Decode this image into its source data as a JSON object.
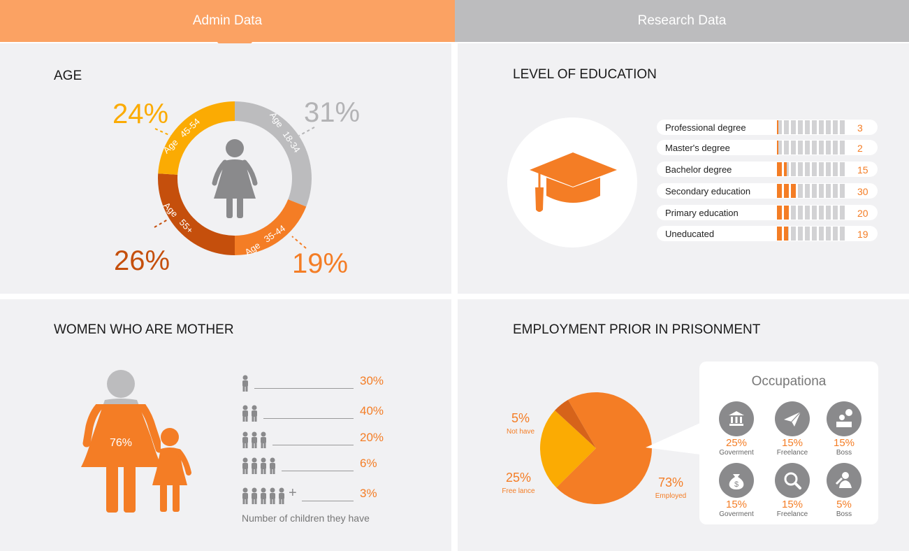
{
  "tabs": {
    "admin": "Admin Data",
    "research": "Research Data"
  },
  "colors": {
    "orange": "#f47d25",
    "light_orange": "#fba263",
    "amber": "#fbab03",
    "dark_orange": "#c54f0c",
    "gray": "#bcbcbe",
    "dark_gray": "#8a8a8c"
  },
  "age": {
    "title": "AGE",
    "chart_data": {
      "type": "pie",
      "style": "donut",
      "segments": [
        {
          "label_top": "Age",
          "label_range": "18-34",
          "value": 31,
          "display": "31%",
          "color": "#bcbcbe"
        },
        {
          "label_top": "Age",
          "label_range": "35-44",
          "value": 19,
          "display": "19%",
          "color": "#f47d25"
        },
        {
          "label_top": "Age",
          "label_range": "55+",
          "value": 26,
          "display": "26%",
          "color": "#c54f0c"
        },
        {
          "label_top": "Age",
          "label_range": "45-54",
          "value": 24,
          "display": "24%",
          "color": "#fbab03"
        }
      ]
    }
  },
  "education": {
    "title": "LEVEL OF EDUCATION",
    "icon": "graduation-cap-icon",
    "chart_data": {
      "type": "bar",
      "categories": [
        "Professional degree",
        "Master's degree",
        "Bachelor degree",
        "Secondary education",
        "Primary education",
        "Uneducated"
      ],
      "values": [
        3,
        2,
        15,
        30,
        20,
        19
      ],
      "segments_total": 10
    }
  },
  "mothers": {
    "title": "WOMEN WHO ARE MOTHER",
    "figure_value": "76%",
    "figure_fraction": 0.76,
    "caption": "Number of children they have",
    "chart_data": {
      "type": "bar",
      "categories": [
        "1",
        "2",
        "3",
        "4",
        "5+"
      ],
      "values": [
        30,
        40,
        20,
        6,
        3
      ],
      "display": [
        "30%",
        "40%",
        "20%",
        "6%",
        "3%"
      ],
      "plus_sign": "+"
    }
  },
  "employment": {
    "title": "EMPLOYMENT PRIOR IN PRISONMENT",
    "chart_data": {
      "type": "pie",
      "segments": [
        {
          "name": "Employed",
          "value": 73,
          "display": "73%",
          "color": "#f47d25"
        },
        {
          "name": "Free lance",
          "value": 25,
          "display": "25%",
          "color": "#fbab03"
        },
        {
          "name": "Not have",
          "value": 5,
          "display": "5%",
          "color": "#d6631a"
        }
      ]
    },
    "occupation": {
      "title": "Occupationa",
      "items": [
        {
          "icon": "bank-icon",
          "pct": "25%",
          "label": "Goverment"
        },
        {
          "icon": "paper-plane-icon",
          "pct": "15%",
          "label": "Freelance"
        },
        {
          "icon": "boss-desk-icon",
          "pct": "15%",
          "label": "Boss"
        },
        {
          "icon": "money-bag-icon",
          "pct": "15%",
          "label": "Goverment"
        },
        {
          "icon": "search-icon",
          "pct": "15%",
          "label": "Freelance"
        },
        {
          "icon": "worker-icon",
          "pct": "5%",
          "label": "Boss"
        }
      ]
    }
  }
}
